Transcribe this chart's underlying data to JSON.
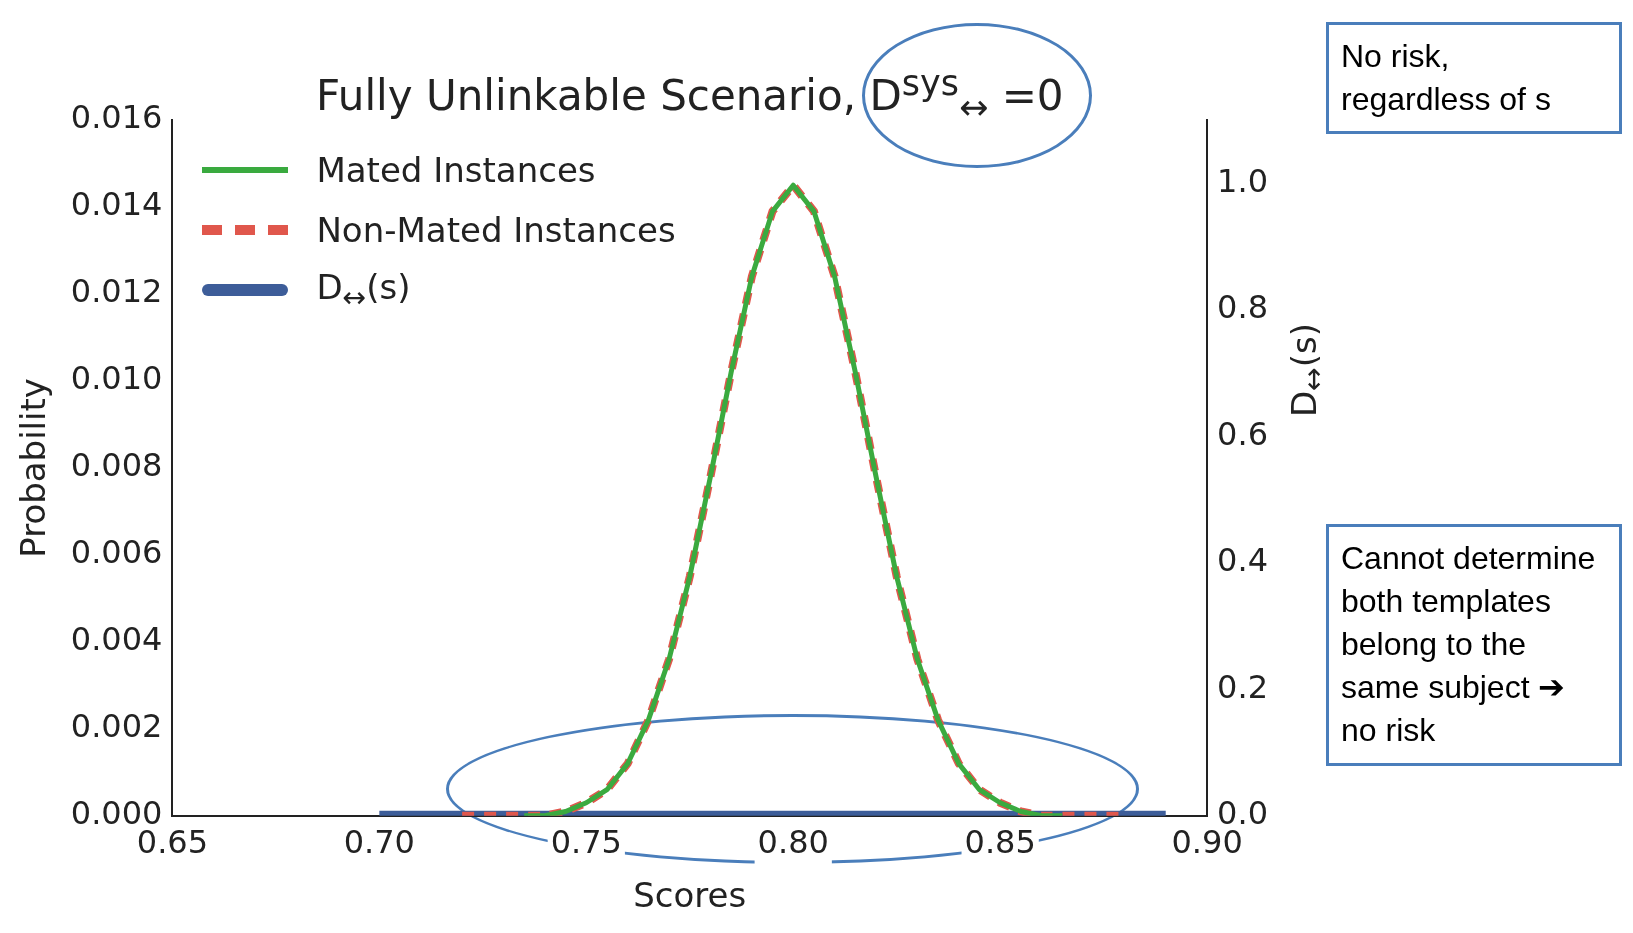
{
  "chart_data": {
    "type": "line",
    "title": "Fully Unlinkable Scenario, D$^{sys}$$_{↔}$ =0",
    "xlabel": "Scores",
    "ylabel": "Probability",
    "y2label": "D$_{↔}$(s)",
    "xlim": [
      0.65,
      0.9
    ],
    "xticks": [
      0.65,
      {
        "value": 0.7,
        "label": "0.70"
      },
      0.75,
      {
        "value": 0.8,
        "label": "0.80"
      },
      0.85,
      {
        "value": 0.9,
        "label": "0.90"
      }
    ],
    "ylim": [
      0,
      0.016
    ],
    "yticks": [
      {
        "value": 0,
        "label": "0.000"
      },
      {
        "value": 0.002,
        "label": "0.002"
      },
      {
        "value": 0.004,
        "label": "0.004"
      },
      {
        "value": 0.006,
        "label": "0.006"
      },
      {
        "value": 0.008,
        "label": "0.008"
      },
      {
        "value": 0.01,
        "label": "0.010"
      },
      {
        "value": 0.012,
        "label": "0.012"
      },
      {
        "value": 0.014,
        "label": "0.014"
      },
      {
        "value": 0.016,
        "label": "0.016"
      }
    ],
    "y2lim": [
      0,
      1.1
    ],
    "y2ticks": [
      {
        "value": 0,
        "label": "0.0"
      },
      {
        "value": 0.2,
        "label": "0.2"
      },
      {
        "value": 0.4,
        "label": "0.4"
      },
      {
        "value": 0.6,
        "label": "0.6"
      },
      {
        "value": 0.8,
        "label": "0.8"
      },
      {
        "value": 1,
        "label": "1.0"
      }
    ],
    "legend": "top left",
    "series": [
      {
        "name": "Mated Instances",
        "color": "#3aaa3f",
        "line_style": "solid",
        "x": [
          0.735,
          0.74,
          0.745,
          0.75,
          0.755,
          0.76,
          0.765,
          0.77,
          0.775,
          0.78,
          0.785,
          0.79,
          0.795,
          0.8,
          0.805,
          0.81,
          0.815,
          0.82,
          0.825,
          0.83,
          0.835,
          0.84,
          0.845,
          0.85,
          0.855,
          0.86,
          0.865
        ],
        "values": [
          0,
          0,
          0.0001,
          0.0003,
          0.0006,
          0.0012,
          0.0022,
          0.0036,
          0.0055,
          0.0078,
          0.0102,
          0.0124,
          0.0139,
          0.0145,
          0.0139,
          0.0124,
          0.0102,
          0.0078,
          0.0055,
          0.0036,
          0.0022,
          0.0012,
          0.0006,
          0.0003,
          0.0001,
          0,
          0
        ]
      },
      {
        "name": "Non-Mated Instances",
        "color": "#e0574c",
        "line_style": "dashed",
        "x": [
          0.72,
          0.73,
          0.735,
          0.74,
          0.745,
          0.75,
          0.755,
          0.76,
          0.765,
          0.77,
          0.775,
          0.78,
          0.785,
          0.79,
          0.795,
          0.8,
          0.805,
          0.81,
          0.815,
          0.82,
          0.825,
          0.83,
          0.835,
          0.84,
          0.845,
          0.85,
          0.855,
          0.86,
          0.87,
          0.88
        ],
        "values": [
          0,
          0,
          0,
          0,
          0.0001,
          0.0003,
          0.0006,
          0.0012,
          0.0022,
          0.0036,
          0.0055,
          0.0078,
          0.0102,
          0.0124,
          0.0139,
          0.0145,
          0.0139,
          0.0124,
          0.0102,
          0.0078,
          0.0055,
          0.0036,
          0.0022,
          0.0012,
          0.0006,
          0.0003,
          0.0001,
          0,
          0,
          0
        ]
      },
      {
        "name": "D$_{↔}$(s)",
        "color": "#3d5d99",
        "line_style": "solid",
        "axis": "y2",
        "x": [
          0.7,
          0.89
        ],
        "values": [
          0,
          0
        ]
      }
    ],
    "annotations": [
      "No risk, regardless of s",
      "Cannot determine both templates belong to the same subject ➔ no risk"
    ]
  }
}
